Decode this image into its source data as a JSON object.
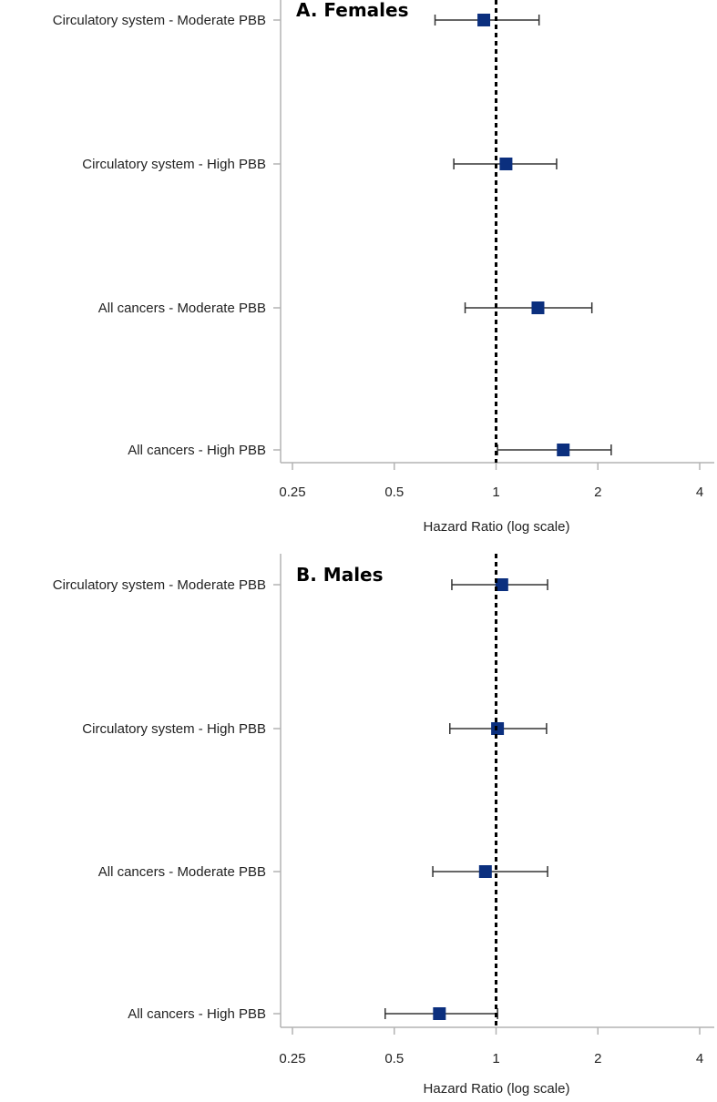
{
  "chart_data": [
    {
      "type": "forest",
      "title": "A. Females",
      "xlabel": "Hazard Ratio (log scale)",
      "x_scale": "log2",
      "xlim": [
        0.25,
        4
      ],
      "xticks": [
        0.25,
        0.5,
        1,
        2,
        4
      ],
      "xtick_labels": [
        "0.25",
        "0.5",
        "1",
        "2",
        "4"
      ],
      "reference_line": 1,
      "categories": [
        "Circulatory system - Moderate PBB",
        "Circulatory system - High PBB",
        "All cancers - Moderate PBB",
        "All cancers - High PBB"
      ],
      "estimates": [
        0.92,
        1.07,
        1.33,
        1.58
      ],
      "lower": [
        0.66,
        0.75,
        0.81,
        1.01
      ],
      "upper": [
        1.34,
        1.51,
        1.92,
        2.19
      ],
      "marker_color": "#0b2f7e"
    },
    {
      "type": "forest",
      "title": "B. Males",
      "xlabel": "Hazard Ratio (log scale)",
      "x_scale": "log2",
      "xlim": [
        0.25,
        4
      ],
      "xticks": [
        0.25,
        0.5,
        1,
        2,
        4
      ],
      "xtick_labels": [
        "0.25",
        "0.5",
        "1",
        "2",
        "4"
      ],
      "reference_line": 1,
      "categories": [
        "Circulatory system - Moderate PBB",
        "Circulatory system - High PBB",
        "All cancers - Moderate PBB",
        "All cancers - High PBB"
      ],
      "estimates": [
        1.04,
        1.01,
        0.93,
        0.68
      ],
      "lower": [
        0.74,
        0.73,
        0.65,
        0.47
      ],
      "upper": [
        1.42,
        1.41,
        1.42,
        1.01
      ],
      "marker_color": "#0b2f7e"
    }
  ],
  "colors": {
    "marker": "#0b2f7e",
    "axis": "#b3b3b3",
    "whisker": "#333333",
    "reference": "#000000"
  }
}
